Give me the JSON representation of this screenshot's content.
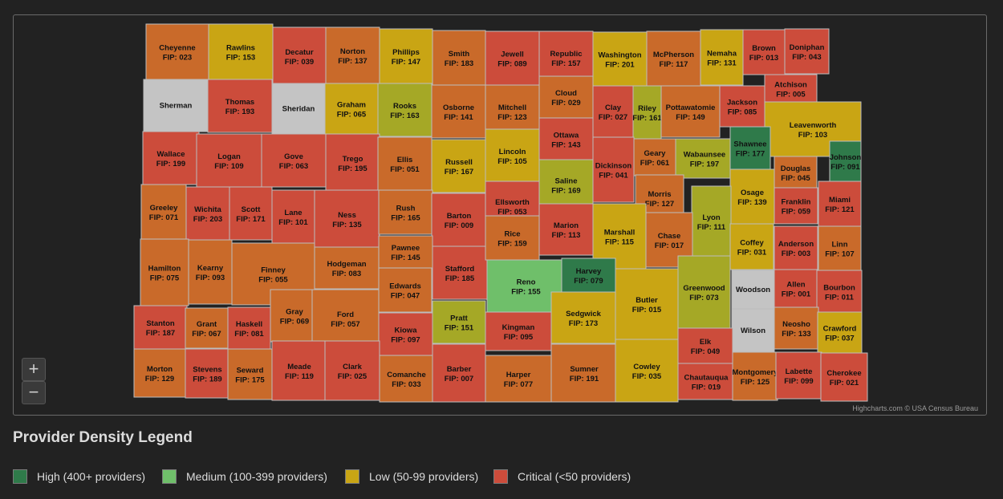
{
  "colors": {
    "high": "#2f7a4a",
    "medium": "#6fbf6a",
    "low": "#c9a514",
    "orange": "#c96a2a",
    "critical": "#cc4c3b",
    "lowgreen": "#a5a826",
    "nodata": "#c4c4c4"
  },
  "map": {
    "credit": "Highcharts.com © USA Census Bureau",
    "zoom_in": "+",
    "zoom_out": "−"
  },
  "legend": {
    "title": "Provider Density Legend",
    "items": [
      {
        "label": "High (400+ providers)",
        "color": "#2f7a4a"
      },
      {
        "label": "Medium (100-399 providers)",
        "color": "#6fbf6a"
      },
      {
        "label": "Low (50-99 providers)",
        "color": "#c9a514"
      },
      {
        "label": "Critical (<50 providers)",
        "color": "#cc4c3b"
      }
    ]
  },
  "counties": [
    {
      "name": "Cheyenne",
      "fips": "FIP: 023",
      "cat": "orange"
    },
    {
      "name": "Rawlins",
      "fips": "FIP: 153",
      "cat": "low"
    },
    {
      "name": "Decatur",
      "fips": "FIP: 039",
      "cat": "critical"
    },
    {
      "name": "Norton",
      "fips": "FIP: 137",
      "cat": "orange"
    },
    {
      "name": "Phillips",
      "fips": "FIP: 147",
      "cat": "low"
    },
    {
      "name": "Smith",
      "fips": "FIP: 183",
      "cat": "orange"
    },
    {
      "name": "Jewell",
      "fips": "FIP: 089",
      "cat": "critical"
    },
    {
      "name": "Republic",
      "fips": "FIP: 157",
      "cat": "critical"
    },
    {
      "name": "Washington",
      "fips": "FIP: 201",
      "cat": "low"
    },
    {
      "name": "McPherson",
      "fips": "FIP: 117",
      "cat": "orange"
    },
    {
      "name": "Nemaha",
      "fips": "FIP: 131",
      "cat": "low"
    },
    {
      "name": "Brown",
      "fips": "FIP: 013",
      "cat": "critical"
    },
    {
      "name": "Doniphan",
      "fips": "FIP: 043",
      "cat": "critical"
    },
    {
      "name": "Sherman",
      "fips": "",
      "cat": "nodata"
    },
    {
      "name": "Thomas",
      "fips": "FIP: 193",
      "cat": "critical"
    },
    {
      "name": "Sheridan",
      "fips": "",
      "cat": "nodata"
    },
    {
      "name": "Graham",
      "fips": "FIP: 065",
      "cat": "low"
    },
    {
      "name": "Rooks",
      "fips": "FIP: 163",
      "cat": "lowgreen"
    },
    {
      "name": "Osborne",
      "fips": "FIP: 141",
      "cat": "orange"
    },
    {
      "name": "Mitchell",
      "fips": "FIP: 123",
      "cat": "orange"
    },
    {
      "name": "Cloud",
      "fips": "FIP: 029",
      "cat": "orange"
    },
    {
      "name": "Clay",
      "fips": "FIP: 027",
      "cat": "critical"
    },
    {
      "name": "Riley",
      "fips": "FIP: 161",
      "cat": "lowgreen"
    },
    {
      "name": "Pottawatomie",
      "fips": "FIP: 149",
      "cat": "orange"
    },
    {
      "name": "Jackson",
      "fips": "FIP: 085",
      "cat": "critical"
    },
    {
      "name": "Atchison",
      "fips": "FIP: 005",
      "cat": "critical"
    },
    {
      "name": "Leavenworth",
      "fips": "FIP: 103",
      "cat": "low"
    },
    {
      "name": "Wallace",
      "fips": "FIP: 199",
      "cat": "critical"
    },
    {
      "name": "Logan",
      "fips": "FIP: 109",
      "cat": "critical"
    },
    {
      "name": "Gove",
      "fips": "FIP: 063",
      "cat": "critical"
    },
    {
      "name": "Trego",
      "fips": "FIP: 195",
      "cat": "critical"
    },
    {
      "name": "Ellis",
      "fips": "FIP: 051",
      "cat": "orange"
    },
    {
      "name": "Russell",
      "fips": "FIP: 167",
      "cat": "low"
    },
    {
      "name": "Lincoln",
      "fips": "FIP: 105",
      "cat": "low"
    },
    {
      "name": "Ottawa",
      "fips": "FIP: 143",
      "cat": "critical"
    },
    {
      "name": "Dickinson",
      "fips": "FIP: 041",
      "cat": "critical"
    },
    {
      "name": "Geary",
      "fips": "FIP: 061",
      "cat": "orange"
    },
    {
      "name": "Wabaunsee",
      "fips": "FIP: 197",
      "cat": "lowgreen"
    },
    {
      "name": "Shawnee",
      "fips": "FIP: 177",
      "cat": "high"
    },
    {
      "name": "Douglas",
      "fips": "FIP: 045",
      "cat": "orange"
    },
    {
      "name": "Johnson",
      "fips": "FIP: 091",
      "cat": "high"
    },
    {
      "name": "Greeley",
      "fips": "FIP: 071",
      "cat": "orange"
    },
    {
      "name": "Wichita",
      "fips": "FIP: 203",
      "cat": "critical"
    },
    {
      "name": "Scott",
      "fips": "FIP: 171",
      "cat": "critical"
    },
    {
      "name": "Lane",
      "fips": "FIP: 101",
      "cat": "critical"
    },
    {
      "name": "Ness",
      "fips": "FIP: 135",
      "cat": "critical"
    },
    {
      "name": "Rush",
      "fips": "FIP: 165",
      "cat": "orange"
    },
    {
      "name": "Barton",
      "fips": "FIP: 009",
      "cat": "critical"
    },
    {
      "name": "Ellsworth",
      "fips": "FIP: 053",
      "cat": "critical"
    },
    {
      "name": "Saline",
      "fips": "FIP: 169",
      "cat": "lowgreen"
    },
    {
      "name": "Morris",
      "fips": "FIP: 127",
      "cat": "orange"
    },
    {
      "name": "Osage",
      "fips": "FIP: 139",
      "cat": "low"
    },
    {
      "name": "Franklin",
      "fips": "FIP: 059",
      "cat": "critical"
    },
    {
      "name": "Miami",
      "fips": "FIP: 121",
      "cat": "critical"
    },
    {
      "name": "Lyon",
      "fips": "FIP: 111",
      "cat": "lowgreen"
    },
    {
      "name": "Marion",
      "fips": "FIP: 113",
      "cat": "critical"
    },
    {
      "name": "Marshall",
      "fips": "FIP: 115",
      "cat": "low"
    },
    {
      "name": "Chase",
      "fips": "FIP: 017",
      "cat": "orange"
    },
    {
      "name": "Hamilton",
      "fips": "FIP: 075",
      "cat": "orange"
    },
    {
      "name": "Kearny",
      "fips": "FIP: 093",
      "cat": "orange"
    },
    {
      "name": "Finney",
      "fips": "FIP: 055",
      "cat": "orange"
    },
    {
      "name": "Hodgeman",
      "fips": "FIP: 083",
      "cat": "orange"
    },
    {
      "name": "Pawnee",
      "fips": "FIP: 145",
      "cat": "orange"
    },
    {
      "name": "Stafford",
      "fips": "FIP: 185",
      "cat": "critical"
    },
    {
      "name": "Rice",
      "fips": "FIP: 159",
      "cat": "orange"
    },
    {
      "name": "Reno",
      "fips": "FIP: 155",
      "cat": "medium"
    },
    {
      "name": "Harvey",
      "fips": "FIP: 079",
      "cat": "high"
    },
    {
      "name": "Coffey",
      "fips": "FIP: 031",
      "cat": "low"
    },
    {
      "name": "Anderson",
      "fips": "FIP: 003",
      "cat": "critical"
    },
    {
      "name": "Linn",
      "fips": "FIP: 107",
      "cat": "orange"
    },
    {
      "name": "Edwards",
      "fips": "FIP: 047",
      "cat": "orange"
    },
    {
      "name": "Gray",
      "fips": "FIP: 069",
      "cat": "orange"
    },
    {
      "name": "Ford",
      "fips": "FIP: 057",
      "cat": "orange"
    },
    {
      "name": "Butler",
      "fips": "FIP: 015",
      "cat": "low"
    },
    {
      "name": "Greenwood",
      "fips": "FIP: 073",
      "cat": "lowgreen"
    },
    {
      "name": "Woodson",
      "fips": "",
      "cat": "nodata"
    },
    {
      "name": "Allen",
      "fips": "FIP: 001",
      "cat": "critical"
    },
    {
      "name": "Bourbon",
      "fips": "FIP: 011",
      "cat": "critical"
    },
    {
      "name": "Stanton",
      "fips": "FIP: 187",
      "cat": "critical"
    },
    {
      "name": "Grant",
      "fips": "FIP: 067",
      "cat": "orange"
    },
    {
      "name": "Haskell",
      "fips": "FIP: 081",
      "cat": "critical"
    },
    {
      "name": "Kiowa",
      "fips": "FIP: 097",
      "cat": "critical"
    },
    {
      "name": "Pratt",
      "fips": "FIP: 151",
      "cat": "lowgreen"
    },
    {
      "name": "Kingman",
      "fips": "FIP: 095",
      "cat": "critical"
    },
    {
      "name": "Sedgwick",
      "fips": "FIP: 173",
      "cat": "low"
    },
    {
      "name": "Wilson",
      "fips": "",
      "cat": "nodata"
    },
    {
      "name": "Neosho",
      "fips": "FIP: 133",
      "cat": "orange"
    },
    {
      "name": "Crawford",
      "fips": "FIP: 037",
      "cat": "low"
    },
    {
      "name": "Elk",
      "fips": "FIP: 049",
      "cat": "critical"
    },
    {
      "name": "Morton",
      "fips": "FIP: 129",
      "cat": "orange"
    },
    {
      "name": "Stevens",
      "fips": "FIP: 189",
      "cat": "critical"
    },
    {
      "name": "Seward",
      "fips": "FIP: 175",
      "cat": "orange"
    },
    {
      "name": "Meade",
      "fips": "FIP: 119",
      "cat": "critical"
    },
    {
      "name": "Clark",
      "fips": "FIP: 025",
      "cat": "critical"
    },
    {
      "name": "Comanche",
      "fips": "FIP: 033",
      "cat": "orange"
    },
    {
      "name": "Barber",
      "fips": "FIP: 007",
      "cat": "critical"
    },
    {
      "name": "Harper",
      "fips": "FIP: 077",
      "cat": "orange"
    },
    {
      "name": "Sumner",
      "fips": "FIP: 191",
      "cat": "orange"
    },
    {
      "name": "Cowley",
      "fips": "FIP: 035",
      "cat": "low"
    },
    {
      "name": "Chautauqua",
      "fips": "FIP: 019",
      "cat": "critical"
    },
    {
      "name": "Montgomery",
      "fips": "FIP: 125",
      "cat": "orange"
    },
    {
      "name": "Labette",
      "fips": "FIP: 099",
      "cat": "critical"
    },
    {
      "name": "Cherokee",
      "fips": "FIP: 021",
      "cat": "critical"
    }
  ]
}
